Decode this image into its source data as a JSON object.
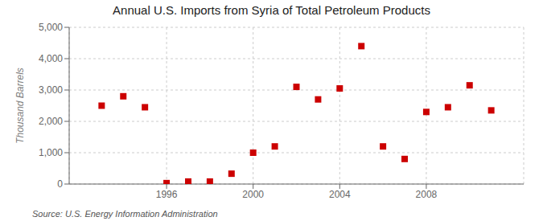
{
  "chart_data": {
    "type": "scatter",
    "title": "Annual U.S. Imports from Syria of Total Petroleum Products",
    "y_label": "Thousand Barrels",
    "annotations": [
      "Source: U.S. Energy Information Administration"
    ],
    "x": [
      1993,
      1994,
      1995,
      1996,
      1997,
      1998,
      1999,
      2000,
      2001,
      2002,
      2003,
      2004,
      2005,
      2006,
      2007,
      2008,
      2009,
      2010,
      2011
    ],
    "values": [
      2500,
      2800,
      2450,
      30,
      80,
      80,
      330,
      1000,
      1200,
      3100,
      2700,
      3050,
      4400,
      1200,
      800,
      2300,
      2450,
      3150,
      2350
    ],
    "color": "#cc0000",
    "marker": "square",
    "xlim": [
      1991.5,
      2012.5
    ],
    "xticks": [
      1996,
      2000,
      2004,
      2008
    ],
    "ylim": [
      0,
      5000
    ],
    "yticks": [
      0,
      {
        "value": 1000,
        "label": "1,000"
      },
      {
        "value": 2000,
        "label": "2,000"
      },
      {
        "value": 3000,
        "label": "3,000"
      },
      {
        "value": 4000,
        "label": "4,000"
      },
      {
        "value": 5000,
        "label": "5,000"
      }
    ],
    "grid": true
  }
}
